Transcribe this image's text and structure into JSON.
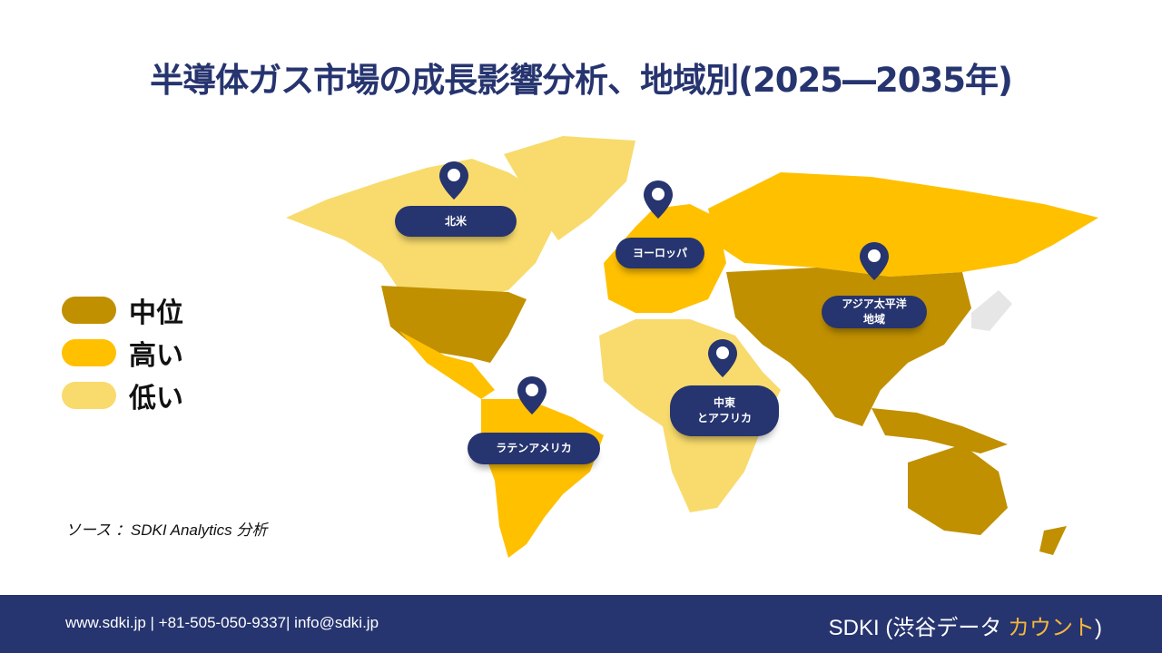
{
  "title": "半導体ガス市場の成長影響分析、地域別(2025―2035年)",
  "legend": [
    {
      "label": "中位",
      "color": "#c09000"
    },
    {
      "label": "高い",
      "color": "#ffc000"
    },
    {
      "label": "低い",
      "color": "#f8db6c"
    }
  ],
  "regions": {
    "north_america": "北米",
    "europe": "ヨーロッパ",
    "apac_1": "アジア太平洋",
    "apac_2": "地域",
    "mea_1": "中東",
    "mea_2": "とアフリカ",
    "latam": "ラテンアメリカ"
  },
  "source": "ソース ：SDKI Analytics 分析",
  "footer": {
    "contact": "www.sdki.jp | +81-505-050-9337| info@sdki.jp",
    "brand_prefix": "SDKI (渋谷データ ",
    "brand_accent": "カウント",
    "brand_suffix": ")"
  },
  "colors": {
    "navy": "#26346f",
    "medium": "#c09000",
    "high": "#ffc000",
    "low": "#f8db6c"
  }
}
